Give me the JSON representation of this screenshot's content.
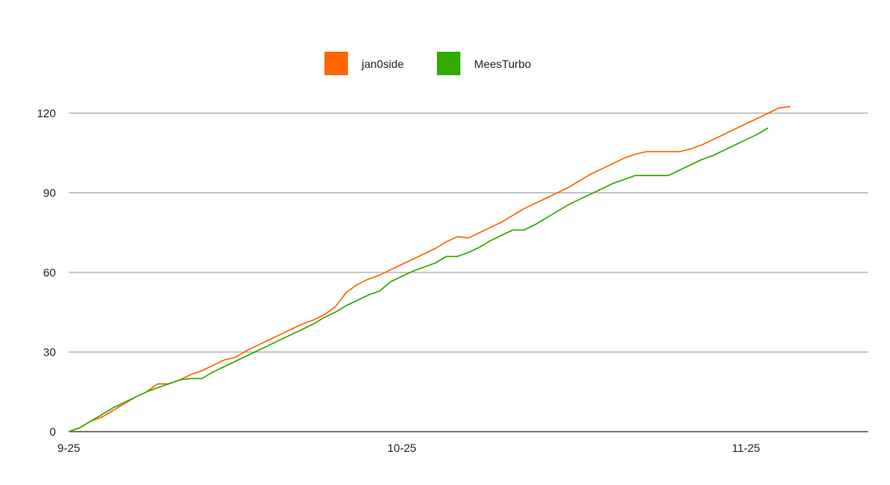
{
  "chart_data": {
    "type": "line",
    "title": "",
    "xlabel": "",
    "ylabel": "",
    "x_ticks": [
      "9-25",
      "10-25",
      "11-25"
    ],
    "x_tick_days": [
      0,
      30,
      61
    ],
    "x_range_days": [
      0,
      72
    ],
    "ylim": [
      0,
      120
    ],
    "y_ticks": [
      0,
      30,
      60,
      90,
      120
    ],
    "grid": "horizontal",
    "legend": "top-center",
    "series": [
      {
        "name": "jan0side",
        "color": "#ff6600",
        "points": [
          [
            0,
            0
          ],
          [
            1,
            1.5
          ],
          [
            2,
            4
          ],
          [
            3,
            5.5
          ],
          [
            4,
            8
          ],
          [
            5,
            10.5
          ],
          [
            6,
            13
          ],
          [
            7,
            15
          ],
          [
            8,
            18
          ],
          [
            9,
            18
          ],
          [
            10,
            19.5
          ],
          [
            11,
            21.5
          ],
          [
            12,
            23
          ],
          [
            13,
            25
          ],
          [
            14,
            27
          ],
          [
            15,
            28
          ],
          [
            16,
            30.5
          ],
          [
            17,
            32.5
          ],
          [
            18,
            34.5
          ],
          [
            19,
            36.5
          ],
          [
            20,
            38.5
          ],
          [
            21,
            40.5
          ],
          [
            22,
            42
          ],
          [
            23,
            44
          ],
          [
            24,
            47
          ],
          [
            25,
            52.5
          ],
          [
            26,
            55.5
          ],
          [
            27,
            57.5
          ],
          [
            28,
            59
          ],
          [
            29,
            61
          ],
          [
            30,
            63
          ],
          [
            31,
            65
          ],
          [
            32,
            67
          ],
          [
            33,
            69
          ],
          [
            34,
            71.5
          ],
          [
            35,
            73.5
          ],
          [
            36,
            73
          ],
          [
            37,
            75
          ],
          [
            38,
            77
          ],
          [
            39,
            79
          ],
          [
            40,
            81.5
          ],
          [
            41,
            84
          ],
          [
            42,
            86
          ],
          [
            43,
            88
          ],
          [
            44,
            90
          ],
          [
            45,
            92
          ],
          [
            46,
            94.5
          ],
          [
            47,
            97
          ],
          [
            48,
            99
          ],
          [
            49,
            101
          ],
          [
            50,
            103
          ],
          [
            51,
            104.5
          ],
          [
            52,
            105.5
          ],
          [
            53,
            105.5
          ],
          [
            54,
            105.5
          ],
          [
            55,
            105.5
          ],
          [
            56,
            106.5
          ],
          [
            57,
            108
          ],
          [
            58,
            110
          ],
          [
            59,
            112
          ],
          [
            60,
            114
          ],
          [
            61,
            116
          ],
          [
            62,
            118
          ],
          [
            63,
            120
          ],
          [
            64,
            122
          ],
          [
            65,
            122.5
          ]
        ]
      },
      {
        "name": "MeesTurbo",
        "color": "#33aa00",
        "points": [
          [
            0,
            0
          ],
          [
            1,
            1.5
          ],
          [
            2,
            4
          ],
          [
            3,
            6.5
          ],
          [
            4,
            9
          ],
          [
            5,
            11
          ],
          [
            6,
            13
          ],
          [
            7,
            15
          ],
          [
            8,
            16.5
          ],
          [
            9,
            18
          ],
          [
            10,
            19.5
          ],
          [
            11,
            20
          ],
          [
            12,
            20
          ],
          [
            13,
            22.5
          ],
          [
            14,
            24.5
          ],
          [
            15,
            26.5
          ],
          [
            16,
            28.5
          ],
          [
            17,
            30.5
          ],
          [
            18,
            32.5
          ],
          [
            19,
            34.5
          ],
          [
            20,
            36.5
          ],
          [
            21,
            38.5
          ],
          [
            22,
            40.5
          ],
          [
            23,
            43
          ],
          [
            24,
            45
          ],
          [
            25,
            47.5
          ],
          [
            26,
            49.5
          ],
          [
            27,
            51.5
          ],
          [
            28,
            53
          ],
          [
            29,
            56.5
          ],
          [
            30,
            58.5
          ],
          [
            31,
            60.5
          ],
          [
            32,
            62
          ],
          [
            33,
            63.5
          ],
          [
            34,
            66
          ],
          [
            35,
            66
          ],
          [
            36,
            67.5
          ],
          [
            37,
            69.5
          ],
          [
            38,
            72
          ],
          [
            39,
            74
          ],
          [
            40,
            76
          ],
          [
            41,
            76
          ],
          [
            42,
            78
          ],
          [
            43,
            80.5
          ],
          [
            44,
            83
          ],
          [
            45,
            85.5
          ],
          [
            46,
            87.5
          ],
          [
            47,
            89.5
          ],
          [
            48,
            91.5
          ],
          [
            49,
            93.5
          ],
          [
            50,
            95
          ],
          [
            51,
            96.5
          ],
          [
            52,
            96.5
          ],
          [
            53,
            96.5
          ],
          [
            54,
            96.5
          ],
          [
            55,
            98.5
          ],
          [
            56,
            100.5
          ],
          [
            57,
            102.5
          ],
          [
            58,
            104
          ],
          [
            59,
            106
          ],
          [
            60,
            108
          ],
          [
            61,
            110
          ],
          [
            62,
            112
          ],
          [
            63,
            114.5
          ]
        ]
      }
    ]
  }
}
